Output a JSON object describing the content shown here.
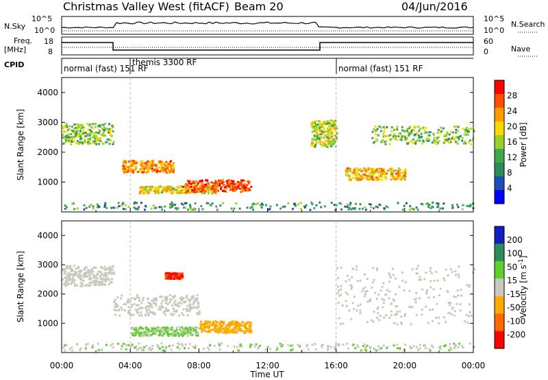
{
  "header": {
    "title": "Christmas Valley West (fitACF)",
    "beam": "Beam 20",
    "date": "04/Jun/2016"
  },
  "rows": {
    "nsky_label": "N.Sky",
    "nsky_ticks": [
      "10^5",
      "10^0"
    ],
    "nsearch_label": "N.Search",
    "nsearch_ticks": [
      "10^5",
      "10^0"
    ],
    "freq_label_1": "Freq.",
    "freq_label_2": "[MHz]",
    "freq_ticks": [
      "18",
      "8"
    ],
    "nave_label": "Nave",
    "nave_ticks": [
      "60",
      "0"
    ],
    "cpid_label": "CPID",
    "cpid_segments": [
      "normal (fast) 151 RF",
      "themis 3300 RF",
      "normal (fast) 151 RF"
    ]
  },
  "colors": {
    "power_scale": [
      "#0000ff",
      "#1f4fb5",
      "#2e8a57",
      "#3fa84f",
      "#9ccf2c",
      "#ffd700",
      "#ff9a00",
      "#ff5000",
      "#ff0000"
    ],
    "velocity_scale": [
      "#1020c0",
      "#2e8a57",
      "#5fcf2a",
      "#c8c8bc",
      "#ffaa00",
      "#ff6a00",
      "#ff0000"
    ]
  },
  "chart_data": [
    {
      "type": "heatmap",
      "title": "Power",
      "ylabel": "Slant Range [km]",
      "xlabel": "",
      "ylim": [
        0,
        4500
      ],
      "yticks": [
        "4000",
        "3000",
        "2000",
        "1000"
      ],
      "x_ticks": [
        "00:00",
        "04:00",
        "08:00",
        "12:00",
        "16:00",
        "20:00",
        "00:00"
      ],
      "colorbar": {
        "label": "Power [dB]",
        "ticks": [
          "28",
          "24",
          "20",
          "16",
          "12",
          "8",
          "4"
        ],
        "range": [
          0,
          30
        ]
      },
      "regions": [
        {
          "t0": 0.0,
          "t1": 3.0,
          "r0": 2300,
          "r1": 3000,
          "level": 14
        },
        {
          "t0": 3.5,
          "t1": 6.5,
          "r0": 1350,
          "r1": 1750,
          "level": 22
        },
        {
          "t0": 4.5,
          "t1": 9.0,
          "r0": 650,
          "r1": 900,
          "level": 18
        },
        {
          "t0": 7.0,
          "t1": 11.0,
          "r0": 700,
          "r1": 1100,
          "level": 26
        },
        {
          "t0": 14.5,
          "t1": 16.0,
          "r0": 2200,
          "r1": 3100,
          "level": 16
        },
        {
          "t0": 16.5,
          "t1": 20.0,
          "r0": 1100,
          "r1": 1500,
          "level": 20
        },
        {
          "t0": 18.0,
          "t1": 24.0,
          "r0": 2300,
          "r1": 2900,
          "level": 14
        },
        {
          "t0": 0.0,
          "t1": 24.0,
          "r0": 100,
          "r1": 350,
          "level": 10
        }
      ]
    },
    {
      "type": "heatmap",
      "title": "Velocity",
      "ylabel": "Slant Range [km]",
      "xlabel": "Time UT",
      "ylim": [
        0,
        4500
      ],
      "yticks": [
        "4000",
        "3000",
        "2000",
        "1000"
      ],
      "x_ticks": [
        "00:00",
        "04:00",
        "08:00",
        "12:00",
        "16:00",
        "20:00",
        "00:00"
      ],
      "colorbar": {
        "label": "Velocity [m s",
        "label_sup": "-1",
        "label_end": "]",
        "ticks": [
          "200",
          "100",
          "50",
          "15",
          "-15",
          "-50",
          "-100",
          "-200"
        ],
        "range": [
          -250,
          250
        ]
      },
      "regions": [
        {
          "t0": 0.0,
          "t1": 3.0,
          "r0": 2300,
          "r1": 3000,
          "level": 0
        },
        {
          "t0": 3.0,
          "t1": 8.0,
          "r0": 1300,
          "r1": 2000,
          "level": 0
        },
        {
          "t0": 4.0,
          "t1": 8.0,
          "r0": 600,
          "r1": 900,
          "level": 40
        },
        {
          "t0": 8.0,
          "t1": 11.0,
          "r0": 700,
          "r1": 1100,
          "level": -60
        },
        {
          "t0": 6.0,
          "t1": 7.0,
          "r0": 2550,
          "r1": 2750,
          "level": -180
        },
        {
          "t0": 16.0,
          "t1": 24.0,
          "r0": 1000,
          "r1": 3000,
          "level": 0
        },
        {
          "t0": 0.0,
          "t1": 24.0,
          "r0": 100,
          "r1": 350,
          "level": 30
        }
      ]
    }
  ]
}
